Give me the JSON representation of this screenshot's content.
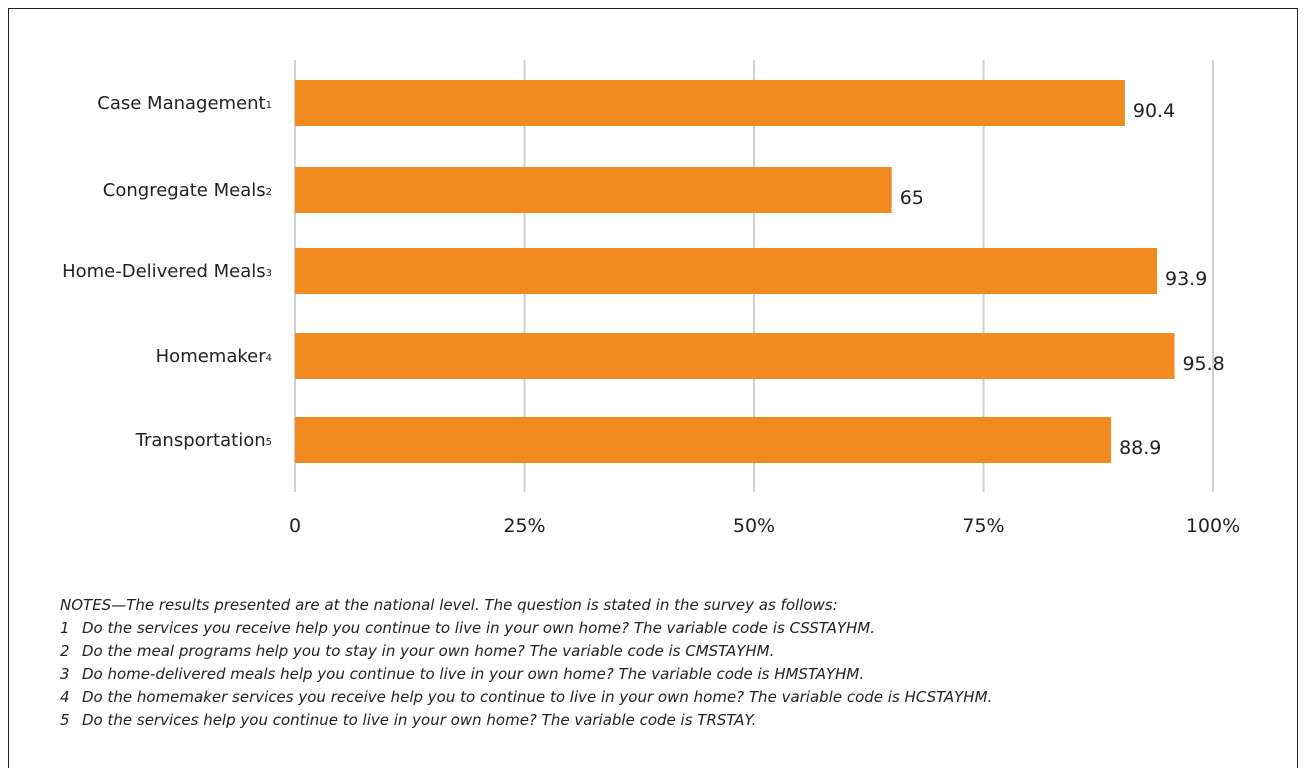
{
  "chart_data": {
    "type": "bar",
    "orientation": "horizontal",
    "categories": [
      "Case Management",
      "Congregate Meals",
      "Home-Delivered Meals",
      "Homemaker",
      "Transportation"
    ],
    "footnote_marks": [
      "1",
      "2",
      "3",
      "4",
      "5"
    ],
    "values": [
      90.4,
      65,
      93.9,
      95.8,
      88.9
    ],
    "value_labels": [
      "90.4",
      "65",
      "93.9",
      "95.8",
      "88.9"
    ],
    "xlim": [
      0,
      100
    ],
    "x_ticks": [
      0,
      25,
      50,
      75,
      100
    ],
    "x_tick_labels": [
      "0",
      "25%",
      "50%",
      "75%",
      "100%"
    ],
    "grid": true,
    "bar_color": "#f28a22",
    "grid_color": "#d0d0d0"
  },
  "notes": {
    "intro": "NOTES—The results presented are at the national level. The question is stated in the survey as follows:",
    "items": [
      {
        "num": "1",
        "text": "Do the services you receive help you continue to live in your own home? The variable code is CSSTAYHM."
      },
      {
        "num": "2",
        "text": "Do the meal programs help you to stay in your own home? The variable code is CMSTAYHM."
      },
      {
        "num": "3",
        "text": "Do home-delivered meals help you continue to live in your own home? The variable code is HMSTAYHM."
      },
      {
        "num": "4",
        "text": "Do the homemaker services you receive help you to continue to live in your own home? The variable code is HCSTAYHM."
      },
      {
        "num": "5",
        "text": "Do the services help you continue to live in your own home? The variable code is TRSTAY."
      }
    ]
  }
}
